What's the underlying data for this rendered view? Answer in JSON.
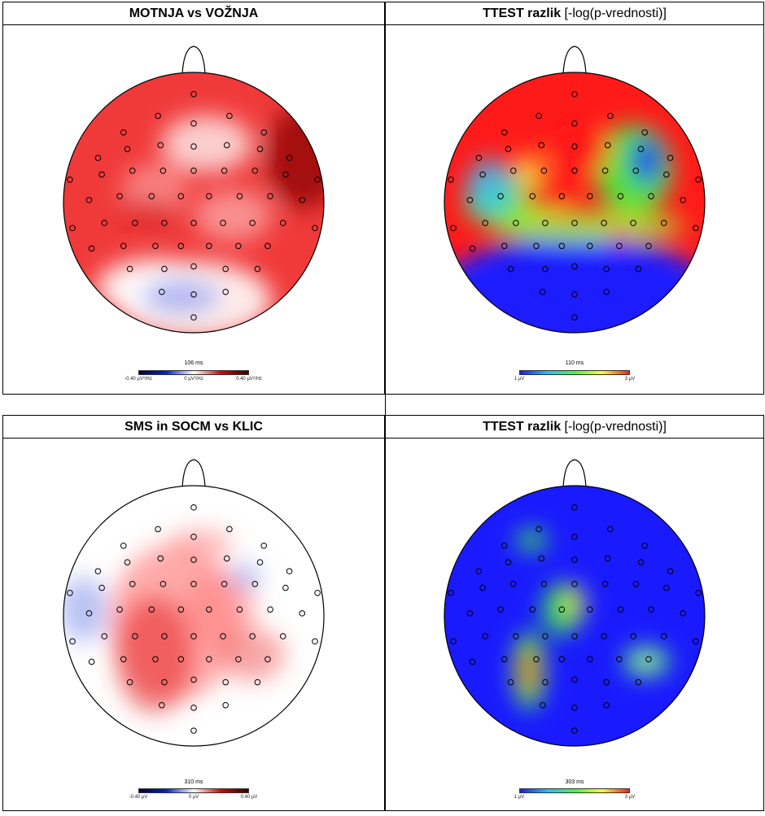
{
  "panels": [
    {
      "id": "tl",
      "title_bold": "MOTNJA vs VOŽNJA",
      "title_rest": "",
      "time_label": "106 ms",
      "colorbar": {
        "scale": "diverging",
        "labels": [
          "-0.40 µV²/Hz",
          "0 µV²/Hz",
          "0.40 µV²/Hz"
        ]
      }
    },
    {
      "id": "tr",
      "title_bold": "TTEST razlik",
      "title_rest": " [-log(p-vrednosti)]",
      "time_label": "110 ms",
      "colorbar": {
        "scale": "jet",
        "labels": [
          "1 µV",
          "3 µV"
        ]
      }
    },
    {
      "id": "bl",
      "title_bold": "SMS in SOCM vs KLIC",
      "title_rest": "",
      "time_label": "310 ms",
      "colorbar": {
        "scale": "diverging",
        "labels": [
          "-0.40 µV",
          "0 µV",
          "0.40 µV"
        ]
      }
    },
    {
      "id": "br",
      "title_bold": "TTEST razlik",
      "title_rest": " [-log(p-vrednosti)]",
      "time_label": "303 ms",
      "colorbar": {
        "scale": "jet",
        "labels": [
          "1 µV",
          "3 µV"
        ]
      }
    }
  ],
  "colors": {
    "red": "#e00000",
    "blue": "#0020e0",
    "white": "#ffffff",
    "jet_low": "#1a1aff",
    "jet_mid": "#3cff3c",
    "jet_high": "#ff1a1a"
  }
}
